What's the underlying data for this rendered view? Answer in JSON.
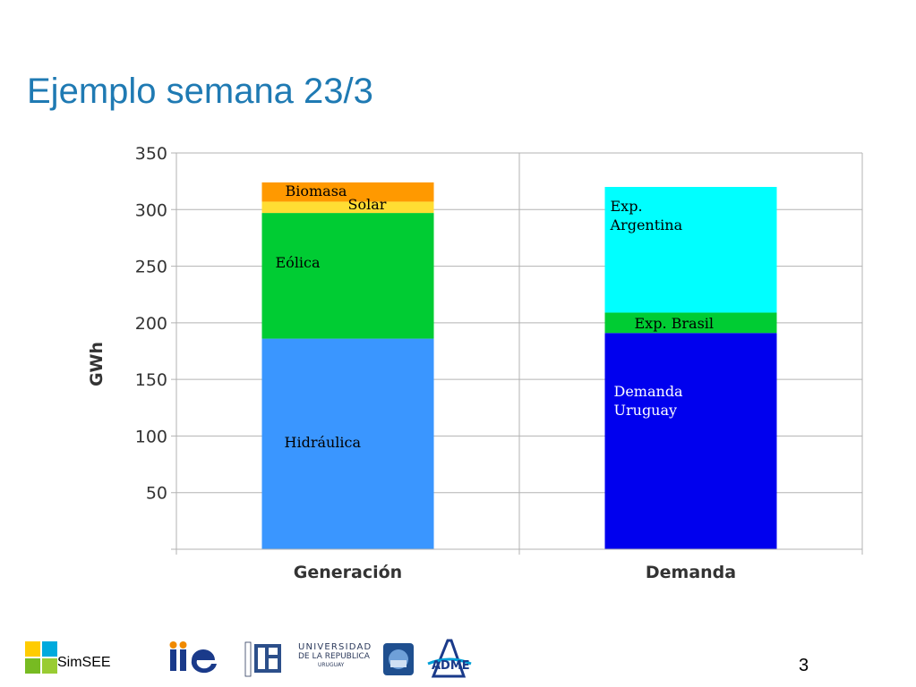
{
  "slide": {
    "title": "Ejemplo semana 23/3",
    "page_number": "3",
    "footer_brand": "SimSEE",
    "udelar": {
      "line1": "UNIVERSIDAD",
      "line2": "DE LA REPUBLICA",
      "line3": "URUGUAY"
    }
  },
  "colors": {
    "title": "#1f7ab3",
    "hidraulica": "#3a96ff",
    "eolica": "#00cc33",
    "solar": "#ffdd33",
    "biomasa": "#ff9900",
    "demanda_uruguay": "#0000ee",
    "exp_brasil": "#00cc33",
    "exp_argentina": "#00ffff"
  },
  "chart_data": {
    "type": "bar",
    "stacked": true,
    "categories": [
      "Generación",
      "Demanda"
    ],
    "ylabel": "GWh",
    "xlabel": "",
    "ylim": [
      0,
      350
    ],
    "yticks": [
      50,
      100,
      150,
      200,
      250,
      300,
      350
    ],
    "grid": true,
    "legend": "none",
    "series": [
      {
        "name": "Hidráulica",
        "label_lines": [
          "Hidráulica"
        ],
        "values": [
          186,
          0
        ],
        "color": "#3a96ff",
        "text_color": "#000000"
      },
      {
        "name": "Eólica",
        "label_lines": [
          "Eólica"
        ],
        "values": [
          111,
          0
        ],
        "color": "#00cc33",
        "text_color": "#000000"
      },
      {
        "name": "Solar",
        "label_lines": [
          "Solar"
        ],
        "values": [
          10,
          0
        ],
        "color": "#ffdd33",
        "text_color": "#000000"
      },
      {
        "name": "Biomasa",
        "label_lines": [
          "Biomasa"
        ],
        "values": [
          17,
          0
        ],
        "color": "#ff9900",
        "text_color": "#000000"
      },
      {
        "name": "Demanda Uruguay",
        "label_lines": [
          "Demanda",
          "Uruguay"
        ],
        "values": [
          0,
          191
        ],
        "color": "#0000ee",
        "text_color": "#ffffff"
      },
      {
        "name": "Exp. Brasil",
        "label_lines": [
          "Exp. Brasil"
        ],
        "values": [
          0,
          18
        ],
        "color": "#00cc33",
        "text_color": "#000000"
      },
      {
        "name": "Exp. Argentina",
        "label_lines": [
          "Exp.",
          "Argentina"
        ],
        "values": [
          0,
          111
        ],
        "color": "#00ffff",
        "text_color": "#000000"
      }
    ]
  }
}
